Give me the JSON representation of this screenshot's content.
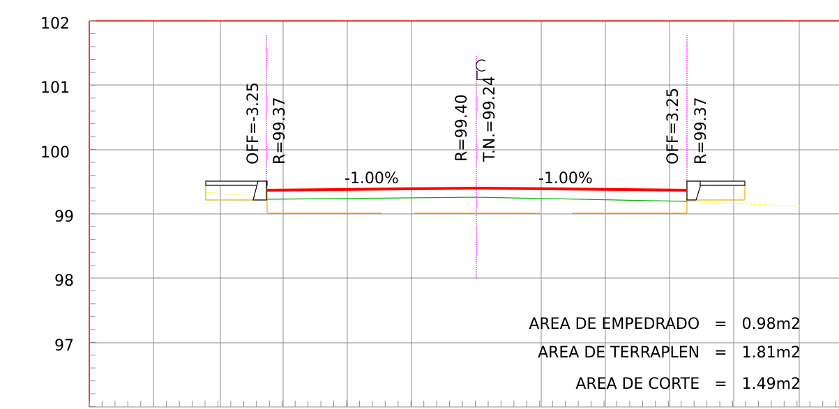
{
  "section": {
    "elevation_axis": {
      "labels": [
        "102",
        "101",
        "100",
        "99",
        "98",
        "97"
      ],
      "values": [
        102,
        101,
        100,
        99,
        98,
        97
      ]
    },
    "offset_left": {
      "label": "OFF=-3.25",
      "value": -3.25
    },
    "offset_right": {
      "label": "OFF=3.25",
      "value": 3.25
    },
    "elev_left": {
      "label": "R=99.37",
      "value": 99.37
    },
    "elev_right": {
      "label": "R=99.37",
      "value": 99.37
    },
    "elev_center": {
      "label": "R=99.40",
      "value": 99.4
    },
    "natural_ground": {
      "label": "T.N.=99.24",
      "value": 99.24
    },
    "centerline_label": "CL",
    "slope_left": {
      "label": "-1.00%",
      "value": -1.0
    },
    "slope_right": {
      "label": "-1.00%",
      "value": -1.0
    },
    "areas": [
      {
        "label": "AREA DE EMPEDRADO",
        "equals": "=",
        "value": "0.98m2"
      },
      {
        "label": "AREA DE TERRAPLEN",
        "equals": "=",
        "value": "1.81m2"
      },
      {
        "label": "AREA DE CORTE",
        "equals": "=",
        "value": "1.49m2"
      }
    ],
    "colors": {
      "frame": "#e00000",
      "grid": "#8c8c8c",
      "pavement": "#ff0000",
      "subgrade": "#00b000",
      "fill": "#f0a800",
      "terrain": "#ffff00",
      "guide": "#ff00ff",
      "curb": "#000000"
    }
  }
}
